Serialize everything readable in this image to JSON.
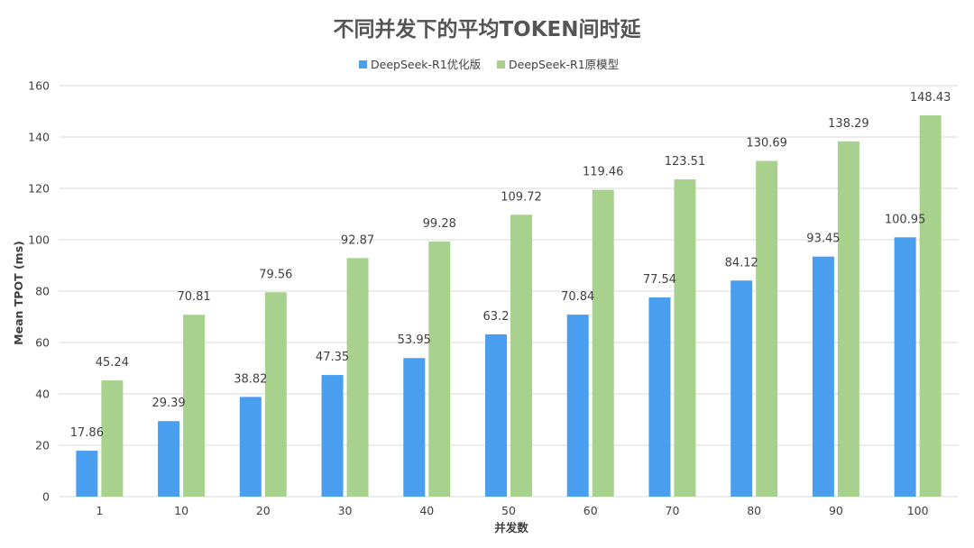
{
  "chart_data": {
    "type": "bar",
    "title": "不同并发下的平均TOKEN间时延",
    "xlabel": "并发数",
    "ylabel": "Mean TPOT (ms)",
    "ylim": [
      0,
      160
    ],
    "yticks": [
      0,
      20,
      40,
      60,
      80,
      100,
      120,
      140,
      160
    ],
    "grid": true,
    "legend_position": "top-center",
    "categories": [
      "1",
      "10",
      "20",
      "30",
      "40",
      "50",
      "60",
      "70",
      "80",
      "90",
      "100"
    ],
    "series": [
      {
        "name": "DeepSeek-R1优化版",
        "color": "#4a9eef",
        "values": [
          17.86,
          29.39,
          38.82,
          47.35,
          53.95,
          63.2,
          70.84,
          77.54,
          84.12,
          93.45,
          100.95
        ],
        "labels": [
          "17.86",
          "29.39",
          "38.82",
          "47.35",
          "53.95",
          "63.2",
          "70.84",
          "77.54",
          "84.12",
          "93.45",
          "100.95"
        ]
      },
      {
        "name": "DeepSeek-R1原模型",
        "color": "#a9d18e",
        "values": [
          45.24,
          70.81,
          79.56,
          92.87,
          99.28,
          109.72,
          119.46,
          123.51,
          130.69,
          138.29,
          148.43
        ],
        "labels": [
          "45.24",
          "70.81",
          "79.56",
          "92.87",
          "99.28",
          "109.72",
          "119.46",
          "123.51",
          "130.69",
          "138.29",
          "148.43"
        ]
      }
    ]
  }
}
